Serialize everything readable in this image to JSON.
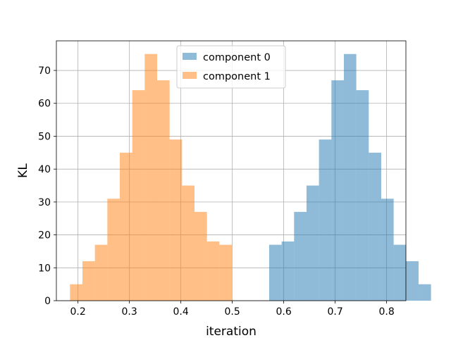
{
  "chart_data": {
    "type": "bar",
    "subtype": "overlaid-histogram",
    "xlabel": "iteration",
    "ylabel": "KL",
    "xlim": [
      0.158,
      0.8375
    ],
    "ylim": [
      0,
      79
    ],
    "xticks": [
      0.2,
      0.3,
      0.4,
      0.5,
      0.6,
      0.7,
      0.8
    ],
    "yticks": [
      0,
      10,
      20,
      30,
      40,
      50,
      60,
      70
    ],
    "grid": true,
    "legend_position": "upper center",
    "bar_opacity": 0.5,
    "bin_start": 0.1845,
    "bin_width": 0.0242,
    "series": [
      {
        "name": "component 0",
        "color": "#1f77b4",
        "values": [
          0,
          0,
          0,
          0,
          0,
          0,
          0,
          0,
          0,
          0,
          0,
          0,
          0,
          0,
          0,
          0,
          17,
          18,
          27,
          35,
          49,
          67,
          75,
          64,
          45,
          31,
          17,
          12,
          5
        ]
      },
      {
        "name": "component 1",
        "color": "#ff7f0e",
        "values": [
          5,
          12,
          17,
          31,
          45,
          64,
          75,
          67,
          49,
          35,
          27,
          18,
          17,
          0,
          0,
          0,
          0,
          0,
          0,
          0,
          0,
          0,
          0,
          0,
          0,
          0,
          0,
          0,
          0
        ]
      }
    ]
  }
}
